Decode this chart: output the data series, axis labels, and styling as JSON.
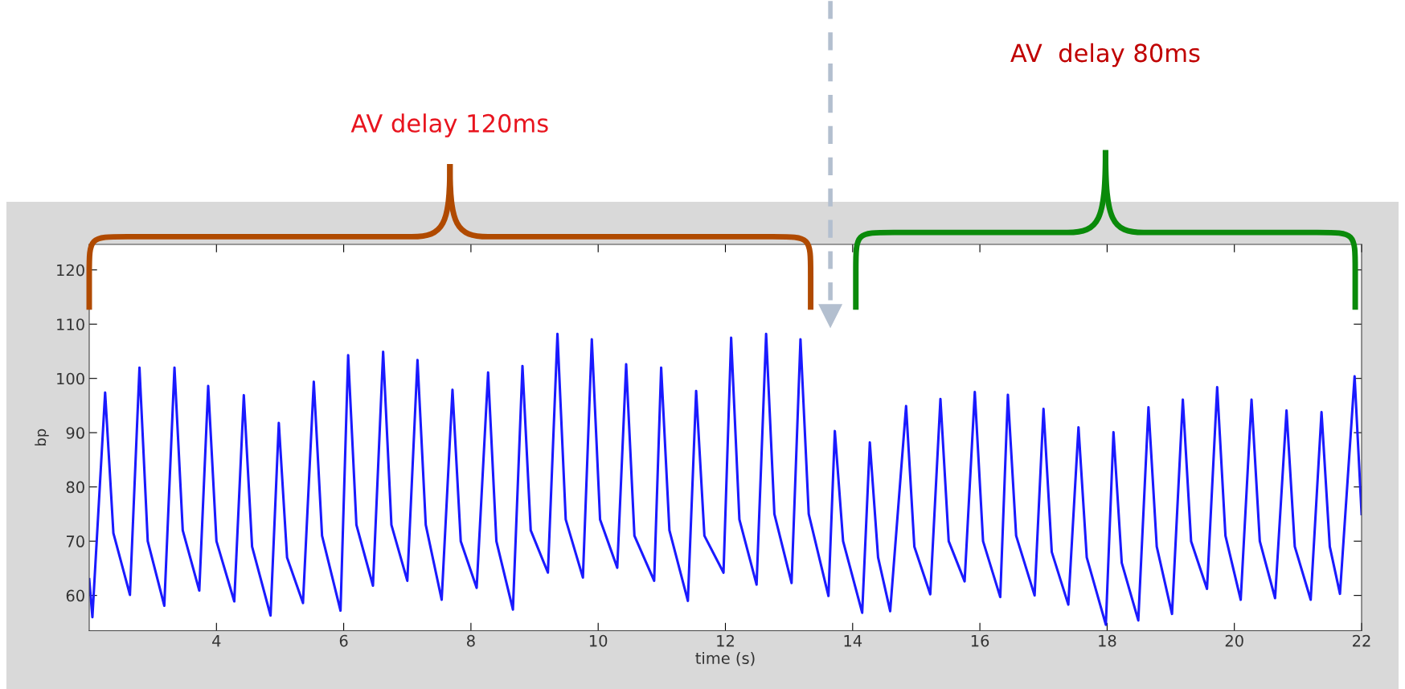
{
  "chart_data": {
    "type": "line",
    "xlabel": "time (s)",
    "ylabel": "bp",
    "xlim": [
      2,
      22
    ],
    "xticks": [
      4,
      6,
      8,
      10,
      12,
      14,
      16,
      18,
      20,
      22
    ],
    "ylim": [
      53.5,
      124.7
    ],
    "yticks": [
      60,
      70,
      80,
      90,
      100,
      110,
      120
    ],
    "grid": false,
    "legend": false,
    "marker": "none",
    "line_style": "solid",
    "series": [
      {
        "color": "#1a1aff",
        "x": [
          2.0,
          2.05,
          2.25,
          2.38,
          2.64,
          2.79,
          2.92,
          3.18,
          3.34,
          3.47,
          3.73,
          3.87,
          4.0,
          4.28,
          4.43,
          4.56,
          4.85,
          4.98,
          5.11,
          5.36,
          5.53,
          5.66,
          5.95,
          6.07,
          6.2,
          6.46,
          6.62,
          6.75,
          7.0,
          7.16,
          7.29,
          7.54,
          7.71,
          7.84,
          8.09,
          8.27,
          8.4,
          8.66,
          8.81,
          8.94,
          9.21,
          9.36,
          9.49,
          9.76,
          9.9,
          10.03,
          10.3,
          10.44,
          10.57,
          10.88,
          10.99,
          11.12,
          11.41,
          11.54,
          11.67,
          11.97,
          12.09,
          12.22,
          12.49,
          12.64,
          12.77,
          13.04,
          13.18,
          13.31,
          13.62,
          13.72,
          13.85,
          14.15,
          14.27,
          14.4,
          14.59,
          14.84,
          14.97,
          15.22,
          15.38,
          15.51,
          15.76,
          15.92,
          16.05,
          16.32,
          16.44,
          16.57,
          16.86,
          17.0,
          17.13,
          17.39,
          17.55,
          17.68,
          17.98,
          18.1,
          18.23,
          18.49,
          18.65,
          18.78,
          19.02,
          19.19,
          19.32,
          19.57,
          19.73,
          19.86,
          20.1,
          20.27,
          20.4,
          20.64,
          20.82,
          20.95,
          21.2,
          21.37,
          21.5,
          21.66,
          21.89,
          22.0
        ],
        "values": [
          63,
          56,
          97.4,
          71.5,
          60.1,
          102,
          70,
          58.1,
          102,
          72,
          60.9,
          98.6,
          70,
          58.9,
          96.9,
          69,
          56.3,
          91.8,
          67,
          58.6,
          99.4,
          71,
          57.2,
          104.3,
          73,
          61.8,
          104.9,
          73,
          62.7,
          103.4,
          73,
          59.2,
          97.9,
          70,
          61.4,
          101.1,
          70,
          57.4,
          102.3,
          72,
          64.2,
          108.2,
          74,
          63.3,
          107.2,
          74,
          65.1,
          102.6,
          71,
          62.7,
          102,
          72,
          59,
          97.7,
          71,
          64.2,
          107.5,
          74,
          62,
          108.2,
          75,
          62.3,
          107.2,
          75,
          59.9,
          90.3,
          70,
          56.8,
          88.2,
          67,
          57.1,
          94.9,
          69,
          60.2,
          96.2,
          70,
          62.6,
          97.5,
          70,
          59.7,
          97,
          71,
          60,
          94.4,
          68,
          58.3,
          91,
          67,
          54.6,
          90.1,
          66,
          55.4,
          94.7,
          69,
          56.6,
          96.1,
          70,
          61.2,
          98.4,
          71,
          59.2,
          96.1,
          70,
          59.5,
          94.1,
          69,
          59.2,
          93.8,
          69,
          60.3,
          100.4,
          75
        ]
      }
    ],
    "annotations": [
      "AV delay 120ms",
      "AV  delay 80ms"
    ],
    "ref_lines": [
      {
        "axis": "x",
        "value": 13.65,
        "color": "#b3bfcf",
        "line_style": "dashed"
      }
    ]
  }
}
